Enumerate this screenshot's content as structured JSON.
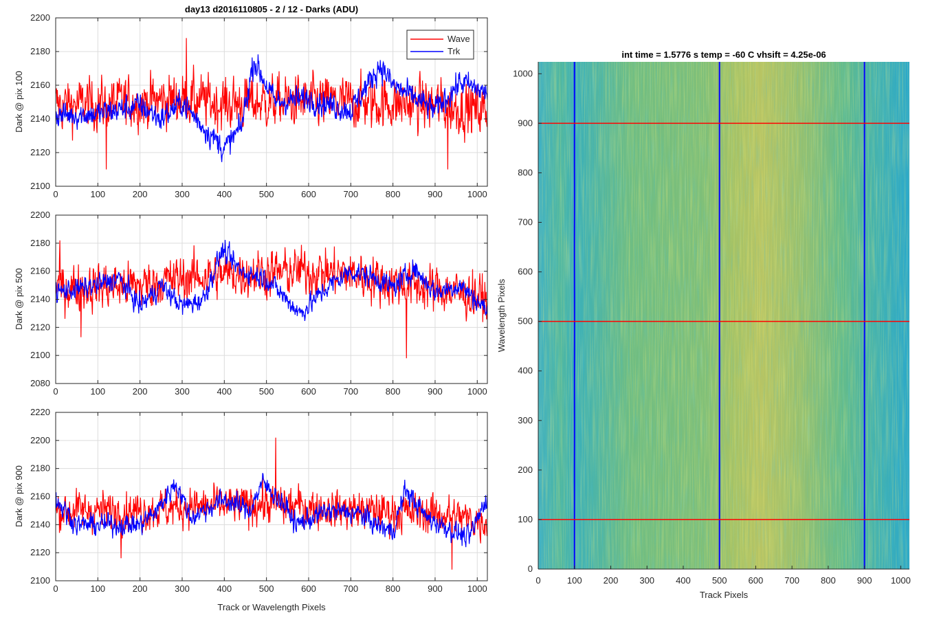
{
  "chart_data": [
    {
      "type": "line",
      "title": "day13 d2016110805 - 2 / 12 - Darks (ADU)",
      "xlabel": "",
      "ylabel": "Dark @ pix 100",
      "xlim": [
        0,
        1024
      ],
      "ylim": [
        2100,
        2200
      ],
      "xticks": [
        0,
        100,
        200,
        300,
        400,
        500,
        600,
        700,
        800,
        900,
        1000
      ],
      "yticks": [
        2100,
        2120,
        2140,
        2160,
        2180,
        2200
      ],
      "legend": {
        "position": "top-right",
        "entries": [
          "Wave",
          "Trk"
        ]
      },
      "series": [
        {
          "name": "Wave",
          "color": "#ff0000",
          "mean": 2148,
          "noise": 12,
          "anchors": [
            [
              0,
              2148
            ],
            [
              200,
              2150
            ],
            [
              300,
              2152
            ],
            [
              400,
              2149
            ],
            [
              500,
              2150
            ],
            [
              700,
              2150
            ],
            [
              900,
              2148
            ],
            [
              1024,
              2145
            ]
          ],
          "spikes": [
            [
              310,
              2188
            ],
            [
              120,
              2110
            ],
            [
              930,
              2110
            ]
          ]
        },
        {
          "name": "Trk",
          "color": "#0000ff",
          "noise": 6,
          "anchors": [
            [
              0,
              2142
            ],
            [
              100,
              2143
            ],
            [
              200,
              2148
            ],
            [
              250,
              2140
            ],
            [
              300,
              2150
            ],
            [
              340,
              2138
            ],
            [
              400,
              2122
            ],
            [
              440,
              2135
            ],
            [
              470,
              2175
            ],
            [
              520,
              2150
            ],
            [
              600,
              2152
            ],
            [
              700,
              2145
            ],
            [
              770,
              2172
            ],
            [
              800,
              2160
            ],
            [
              900,
              2145
            ],
            [
              960,
              2162
            ],
            [
              1024,
              2155
            ]
          ],
          "spikes": []
        }
      ]
    },
    {
      "type": "line",
      "title": "",
      "xlabel": "",
      "ylabel": "Dark @ pix 500",
      "xlim": [
        0,
        1024
      ],
      "ylim": [
        2080,
        2200
      ],
      "xticks": [
        0,
        100,
        200,
        300,
        400,
        500,
        600,
        700,
        800,
        900,
        1000
      ],
      "yticks": [
        2080,
        2100,
        2120,
        2140,
        2160,
        2180,
        2200
      ],
      "series": [
        {
          "name": "Wave",
          "color": "#ff0000",
          "noise": 13,
          "anchors": [
            [
              0,
              2148
            ],
            [
              200,
              2150
            ],
            [
              300,
              2155
            ],
            [
              400,
              2158
            ],
            [
              600,
              2160
            ],
            [
              700,
              2158
            ],
            [
              800,
              2152
            ],
            [
              900,
              2148
            ],
            [
              1024,
              2140
            ]
          ],
          "spikes": [
            [
              832,
              2098
            ],
            [
              60,
              2113
            ],
            [
              10,
              2182
            ]
          ]
        },
        {
          "name": "Trk",
          "color": "#0000ff",
          "noise": 6,
          "anchors": [
            [
              0,
              2145
            ],
            [
              100,
              2150
            ],
            [
              150,
              2155
            ],
            [
              200,
              2135
            ],
            [
              250,
              2150
            ],
            [
              300,
              2135
            ],
            [
              350,
              2140
            ],
            [
              395,
              2175
            ],
            [
              440,
              2160
            ],
            [
              500,
              2155
            ],
            [
              580,
              2130
            ],
            [
              650,
              2150
            ],
            [
              700,
              2160
            ],
            [
              760,
              2155
            ],
            [
              800,
              2148
            ],
            [
              850,
              2162
            ],
            [
              900,
              2145
            ],
            [
              960,
              2150
            ],
            [
              1024,
              2132
            ]
          ],
          "spikes": []
        }
      ]
    },
    {
      "type": "line",
      "title": "",
      "xlabel": "Track or Wavelength Pixels",
      "ylabel": "Dark @ pix 900",
      "xlim": [
        0,
        1024
      ],
      "ylim": [
        2100,
        2220
      ],
      "xticks": [
        0,
        100,
        200,
        300,
        400,
        500,
        600,
        700,
        800,
        900,
        1000
      ],
      "yticks": [
        2100,
        2120,
        2140,
        2160,
        2180,
        2200,
        2220
      ],
      "series": [
        {
          "name": "Wave",
          "color": "#ff0000",
          "noise": 11,
          "anchors": [
            [
              0,
              2150
            ],
            [
              200,
              2150
            ],
            [
              300,
              2152
            ],
            [
              500,
              2155
            ],
            [
              700,
              2150
            ],
            [
              900,
              2148
            ],
            [
              1024,
              2142
            ]
          ],
          "spikes": [
            [
              522,
              2202
            ],
            [
              155,
              2116
            ],
            [
              940,
              2108
            ]
          ]
        },
        {
          "name": "Trk",
          "color": "#0000ff",
          "noise": 6,
          "anchors": [
            [
              0,
              2158
            ],
            [
              50,
              2140
            ],
            [
              150,
              2140
            ],
            [
              200,
              2140
            ],
            [
              240,
              2150
            ],
            [
              285,
              2170
            ],
            [
              320,
              2145
            ],
            [
              400,
              2158
            ],
            [
              460,
              2150
            ],
            [
              490,
              2170
            ],
            [
              540,
              2155
            ],
            [
              570,
              2140
            ],
            [
              650,
              2150
            ],
            [
              720,
              2148
            ],
            [
              760,
              2140
            ],
            [
              800,
              2135
            ],
            [
              830,
              2165
            ],
            [
              880,
              2145
            ],
            [
              980,
              2130
            ],
            [
              1024,
              2160
            ]
          ],
          "spikes": []
        }
      ]
    },
    {
      "type": "heatmap",
      "title": "int time = 1.5776 s    temp = -60 C    vhsift = 4.25e-06",
      "xlabel": "Track Pixels",
      "ylabel": "Wavelength Pixels",
      "xlim": [
        0,
        1024
      ],
      "ylim": [
        0,
        1024
      ],
      "xticks": [
        0,
        100,
        200,
        300,
        400,
        500,
        600,
        700,
        800,
        900,
        1000
      ],
      "yticks": [
        0,
        100,
        200,
        300,
        400,
        500,
        600,
        700,
        800,
        900,
        1000
      ],
      "colormap": "parula",
      "vertical_lines": [
        100,
        500,
        900
      ],
      "vertical_line_color": "#0000ff",
      "horizontal_lines": [
        100,
        500,
        900
      ],
      "horizontal_line_color": "#ff0000"
    }
  ]
}
